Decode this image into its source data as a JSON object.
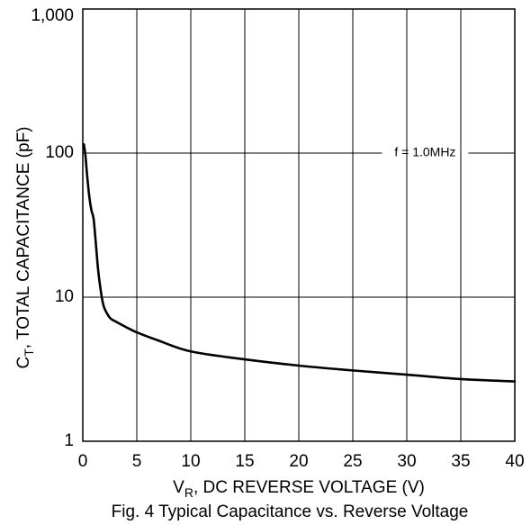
{
  "chart_data": {
    "type": "line",
    "caption": "Fig. 4 Typical Capacitance vs. Reverse Voltage",
    "xlabel": {
      "main": "V",
      "sub": "R",
      "rest": ", DC REVERSE VOLTAGE (V)"
    },
    "ylabel": {
      "main": "C",
      "sub": "T",
      "rest": ", TOTAL CAPACITANCE (pF)"
    },
    "xlim": [
      0,
      40
    ],
    "ylim": [
      1,
      1000
    ],
    "y_scale": "log",
    "grid": true,
    "x_ticks": [
      0,
      5,
      10,
      15,
      20,
      25,
      30,
      35,
      40
    ],
    "x_tick_labels": [
      "0",
      "5",
      "10",
      "15",
      "20",
      "25",
      "30",
      "35",
      "40"
    ],
    "y_ticks": [
      1,
      10,
      100,
      1000
    ],
    "y_tick_labels": [
      "1",
      "10",
      "100",
      "1,000"
    ],
    "annotation": {
      "text": "f = 1.0MHz",
      "y": 100
    },
    "series": [
      {
        "x": [
          0.1,
          0.25,
          0.4,
          0.6,
          0.8,
          1.0,
          1.2,
          1.4,
          1.6,
          1.8,
          2.0,
          2.5,
          3.0,
          4.0,
          5.0,
          7.0,
          10.0,
          15.0,
          20.0,
          25.0,
          30.0,
          35.0,
          40.0
        ],
        "y": [
          115,
          95,
          70,
          50,
          40,
          35,
          24,
          16,
          12,
          9.6,
          8.4,
          7.2,
          6.8,
          6.2,
          5.7,
          5.0,
          4.2,
          3.7,
          3.35,
          3.1,
          2.9,
          2.7,
          2.6
        ]
      }
    ],
    "colors": {
      "line": "#000000",
      "grid": "#000000",
      "background": "#ffffff"
    }
  }
}
